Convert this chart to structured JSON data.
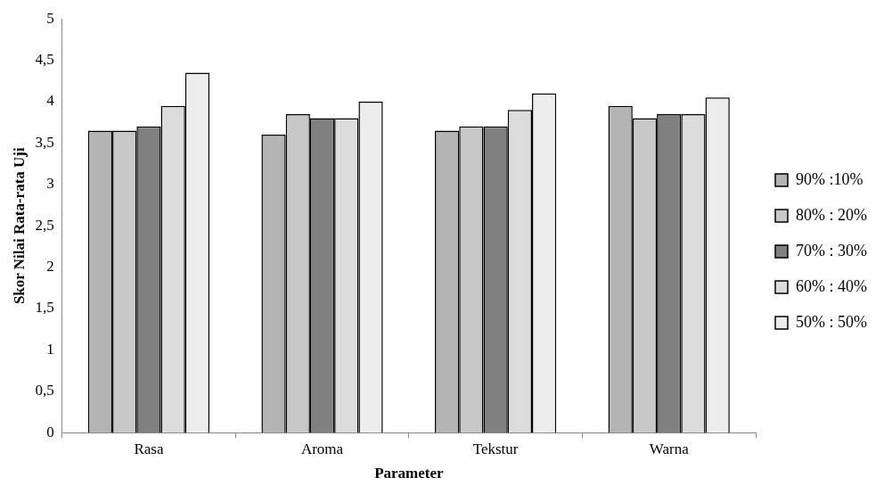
{
  "chart_data": {
    "type": "bar",
    "xlabel": "Parameter",
    "ylabel": "Skor Nilai Rata-rata Uji",
    "categories": [
      "Rasa",
      "Aroma",
      "Tekstur",
      "Warna"
    ],
    "series": [
      {
        "name": "90% :10%",
        "color": "#b4b4b4",
        "values": [
          3.65,
          3.6,
          3.65,
          3.95
        ]
      },
      {
        "name": "80% : 20%",
        "color": "#c8c8c8",
        "values": [
          3.65,
          3.85,
          3.7,
          3.8
        ]
      },
      {
        "name": "70% : 30%",
        "color": "#808080",
        "values": [
          3.7,
          3.8,
          3.7,
          3.85
        ]
      },
      {
        "name": "60% : 40%",
        "color": "#dcdcdc",
        "values": [
          3.95,
          3.8,
          3.9,
          3.85
        ]
      },
      {
        "name": "50% : 50%",
        "color": "#ededed",
        "values": [
          4.35,
          4.0,
          4.1,
          4.05
        ]
      }
    ],
    "ylim": [
      0,
      5
    ],
    "yticks": [
      0,
      {
        "value": 0.5,
        "label": "0,5"
      },
      1,
      {
        "value": 1.5,
        "label": "1,5"
      },
      2,
      {
        "value": 2.5,
        "label": "2,5"
      },
      3,
      {
        "value": 3.5,
        "label": "3,5"
      },
      4,
      {
        "value": 4.5,
        "label": "4,5"
      },
      5
    ],
    "grid": false,
    "legend": "right"
  }
}
